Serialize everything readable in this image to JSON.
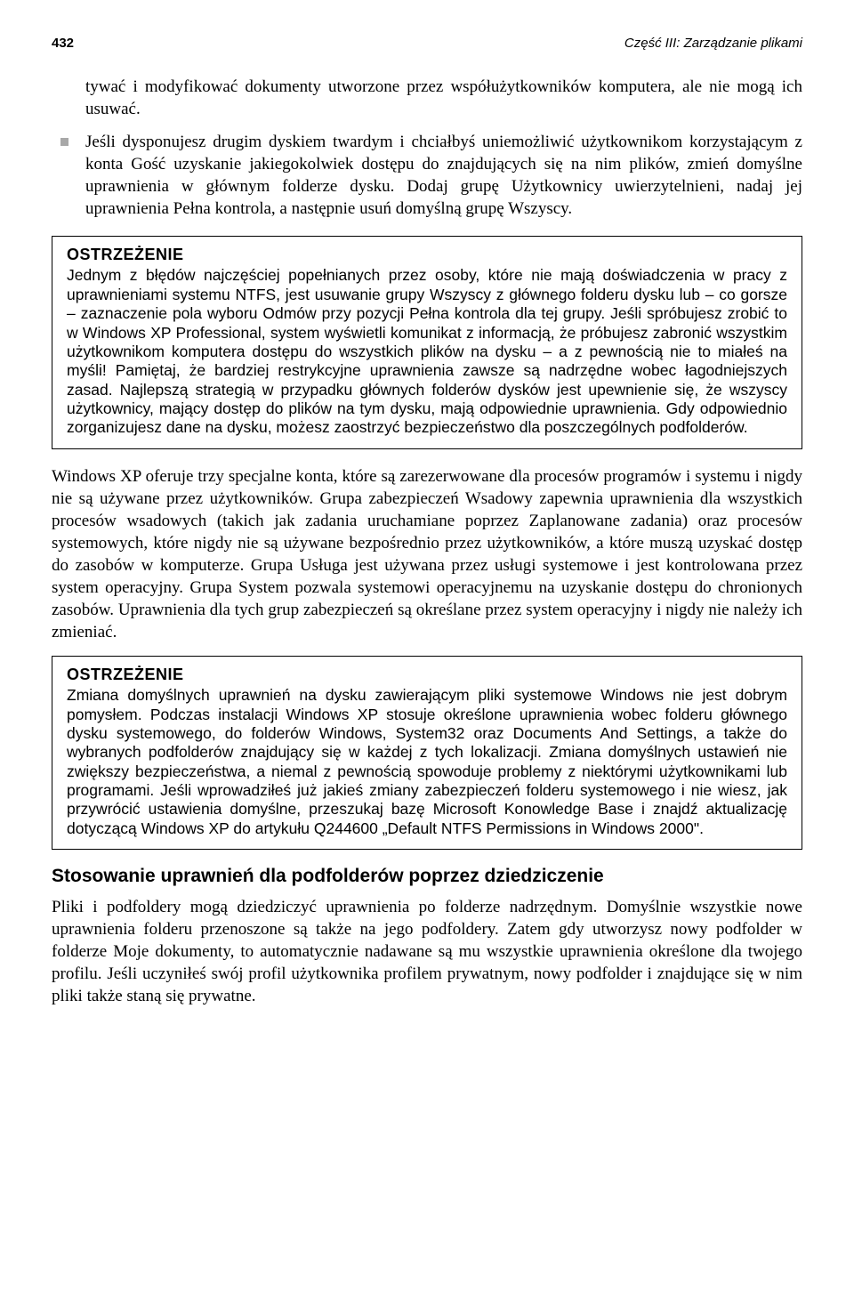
{
  "header": {
    "page_number": "432",
    "running_head": "Część III: Zarządzanie plikami"
  },
  "continuation_para": "tywać i modyfikować dokumenty utworzone przez współużytkowników komputera, ale nie mogą ich usuwać.",
  "bullet_para": "Jeśli dysponujesz drugim dyskiem twardym i chciałbyś uniemożliwić użytkownikom korzystającym z konta Gość uzyskanie jakiegokolwiek dostępu do znajdujących się na nim plików, zmień domyślne uprawnienia w głównym folderze dysku. Dodaj grupę Użytkownicy uwierzytelnieni, nadaj jej uprawnienia Pełna kontrola, a następnie usuń domyślną grupę Wszyscy.",
  "warning1": {
    "title": "OSTRZEŻENIE",
    "body": "Jednym z błędów najczęściej popełnianych przez osoby, które nie mają doświadczenia w pracy z uprawnieniami systemu NTFS, jest usuwanie grupy Wszyscy z głównego folderu dysku lub – co gorsze – zaznaczenie pola wyboru Odmów przy pozycji Pełna kontrola dla tej grupy. Jeśli spróbujesz zrobić to w Windows XP Professional, system wyświetli komunikat z informacją, że próbujesz zabronić wszystkim użytkownikom komputera dostępu do wszystkich plików na dysku – a z pewnością nie to miałeś na myśli! Pamiętaj, że bardziej restrykcyjne uprawnienia zawsze są nadrzędne wobec łagodniejszych zasad. Najlepszą strategią w przypadku głównych folderów dysków jest upewnienie się, że wszyscy użytkownicy, mający dostęp do plików na tym dysku, mają odpowiednie uprawnienia. Gdy odpowiednio zorganizujesz dane na dysku, możesz zaostrzyć bezpieczeństwo dla poszczególnych podfolderów."
  },
  "middle_para": "Windows XP oferuje trzy specjalne konta, które są zarezerwowane dla procesów programów i systemu i nigdy nie są używane przez użytkowników. Grupa zabezpieczeń Wsadowy zapewnia uprawnienia dla wszystkich procesów wsadowych (takich jak zadania uruchamiane poprzez Zaplanowane zadania) oraz procesów systemowych, które nigdy nie są używane bezpośrednio przez użytkowników, a które muszą uzyskać dostęp do zasobów w komputerze. Grupa Usługa jest używana przez usługi systemowe i jest kontrolowana przez system operacyjny. Grupa System pozwala systemowi operacyjnemu na uzyskanie dostępu do chronionych zasobów. Uprawnienia dla tych grup zabezpieczeń są określane przez system operacyjny i nigdy nie należy ich zmieniać.",
  "warning2": {
    "title": "OSTRZEŻENIE",
    "body": "Zmiana domyślnych uprawnień na dysku zawierającym pliki systemowe Windows nie jest dobrym pomysłem. Podczas instalacji Windows XP stosuje określone uprawnienia wobec folderu głównego dysku systemowego, do folderów Windows, System32 oraz Documents And Settings, a także do wybranych podfolderów znajdujący się w każdej z tych lokalizacji. Zmiana domyślnych ustawień nie zwiększy bezpieczeństwa, a niemal z pewnością spowoduje problemy z niektórymi użytkownikami lub programami. Jeśli wprowadziłeś już jakieś zmiany zabezpieczeń folderu systemowego i nie wiesz, jak przywrócić ustawienia domyślne, przeszukaj bazę Microsoft Konowledge Base i znajdź aktualizację dotyczącą Windows XP do artykułu Q244600 „Default NTFS Permissions in Windows 2000\"."
  },
  "section_heading": "Stosowanie uprawnień dla podfolderów poprzez dziedziczenie",
  "final_para": "Pliki i podfoldery mogą dziedziczyć uprawnienia po folderze nadrzędnym. Domyślnie wszystkie nowe uprawnienia folderu przenoszone są także na jego podfoldery. Zatem gdy utworzysz nowy podfolder w folderze Moje dokumenty, to automatycznie nadawane są mu wszystkie uprawnienia określone dla twojego profilu. Jeśli uczyniłeś swój profil użytkownika profilem prywatnym, nowy podfolder i znajdujące się w nim pliki także staną się prywatne."
}
